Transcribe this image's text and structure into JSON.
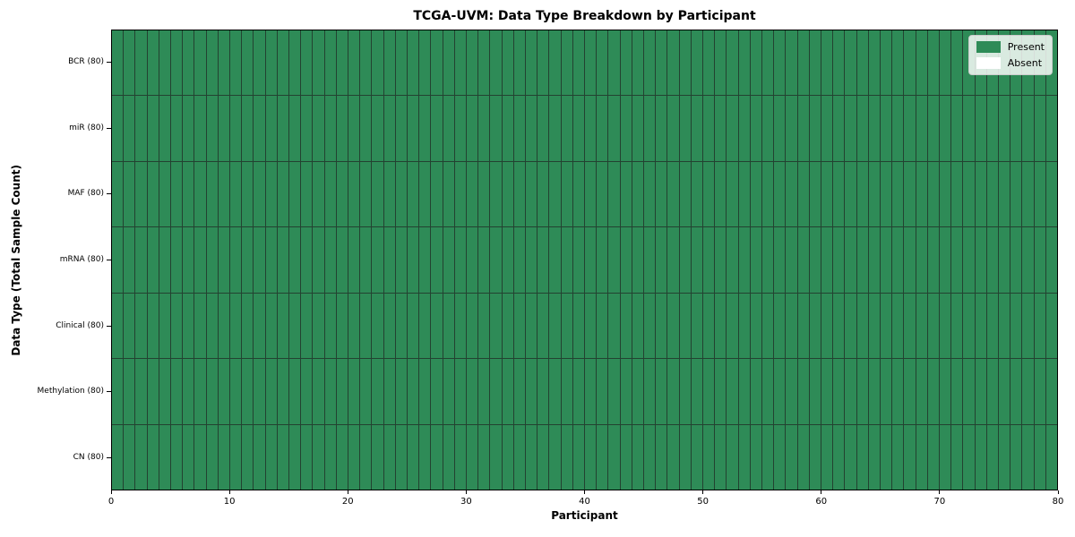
{
  "chart_data": {
    "type": "heatmap",
    "title": "TCGA-UVM: Data Type Breakdown by Participant",
    "xlabel": "Participant",
    "ylabel": "Data Type (Total Sample Count)",
    "n_participants": 80,
    "x_ticks": [
      0,
      10,
      20,
      30,
      40,
      50,
      60,
      70,
      80
    ],
    "x_range": [
      0,
      80
    ],
    "rows": [
      {
        "label": "BCR (80)",
        "present_count": 80,
        "absent_count": 0
      },
      {
        "label": "miR (80)",
        "present_count": 80,
        "absent_count": 0
      },
      {
        "label": "MAF (80)",
        "present_count": 80,
        "absent_count": 0
      },
      {
        "label": "mRNA (80)",
        "present_count": 80,
        "absent_count": 0
      },
      {
        "label": "Clinical (80)",
        "present_count": 80,
        "absent_count": 0
      },
      {
        "label": "Methylation (80)",
        "present_count": 80,
        "absent_count": 0
      },
      {
        "label": "CN (80)",
        "present_count": 80,
        "absent_count": 0
      }
    ],
    "legend": [
      {
        "label": "Present",
        "color": "#2e8b57"
      },
      {
        "label": "Absent",
        "color": "#ffffff"
      }
    ],
    "legend_position": "upper right",
    "colors": {
      "present": "#2e8b57",
      "absent": "#ffffff",
      "cell_border": "#234231",
      "frame": "#000000",
      "background": "#ffffff"
    },
    "grid": true
  }
}
